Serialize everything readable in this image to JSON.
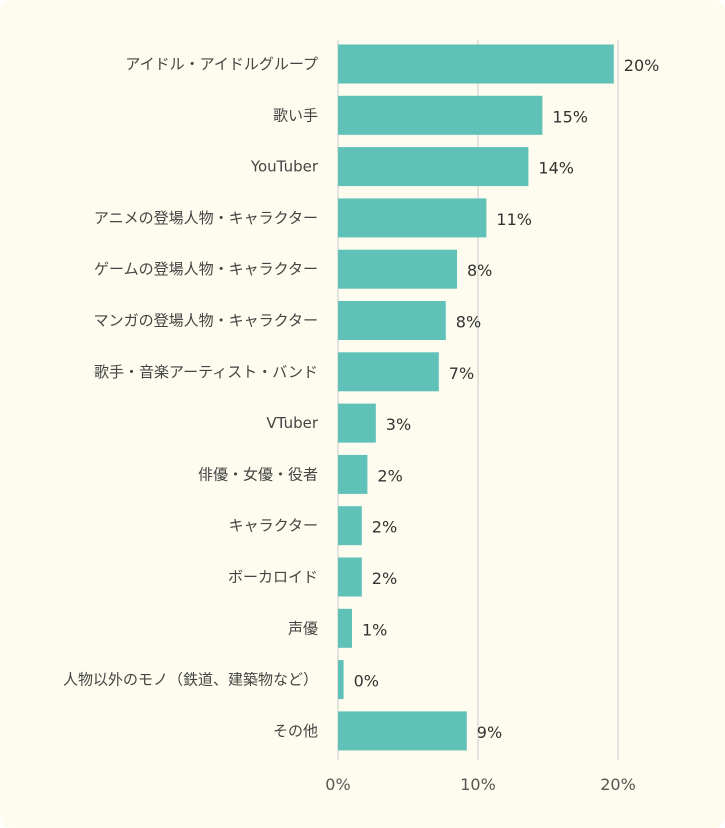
{
  "chart_data": {
    "type": "bar",
    "orientation": "horizontal",
    "categories": [
      "アイドル・アイドルグループ",
      "歌い手",
      "YouTuber",
      "アニメの登場人物・キャラクター",
      "ゲームの登場人物・キャラクター",
      "マンガの登場人物・キャラクター",
      "歌手・音楽アーティスト・バンド",
      "VTuber",
      "俳優・女優・役者",
      "キャラクター",
      "ボーカロイド",
      "声優",
      "人物以外のモノ（鉄道、建築物など）",
      "その他"
    ],
    "values": [
      19.7,
      14.6,
      13.6,
      10.6,
      8.5,
      7.7,
      7.2,
      2.7,
      2.1,
      1.7,
      1.7,
      1.0,
      0.4,
      9.2
    ],
    "value_labels": [
      "20%",
      "15%",
      "14%",
      "11%",
      "8%",
      "8%",
      "7%",
      "3%",
      "2%",
      "2%",
      "2%",
      "1%",
      "0%",
      "9%"
    ],
    "xlim": [
      0,
      20
    ],
    "x_ticks": [
      "0%",
      "10%",
      "20%"
    ],
    "x_tick_values": [
      0,
      10,
      20
    ],
    "grid": "vertical",
    "bar_color": "#5fc1b8",
    "background_color": "#fdfcee",
    "grid_color": "#d9d9d9"
  }
}
